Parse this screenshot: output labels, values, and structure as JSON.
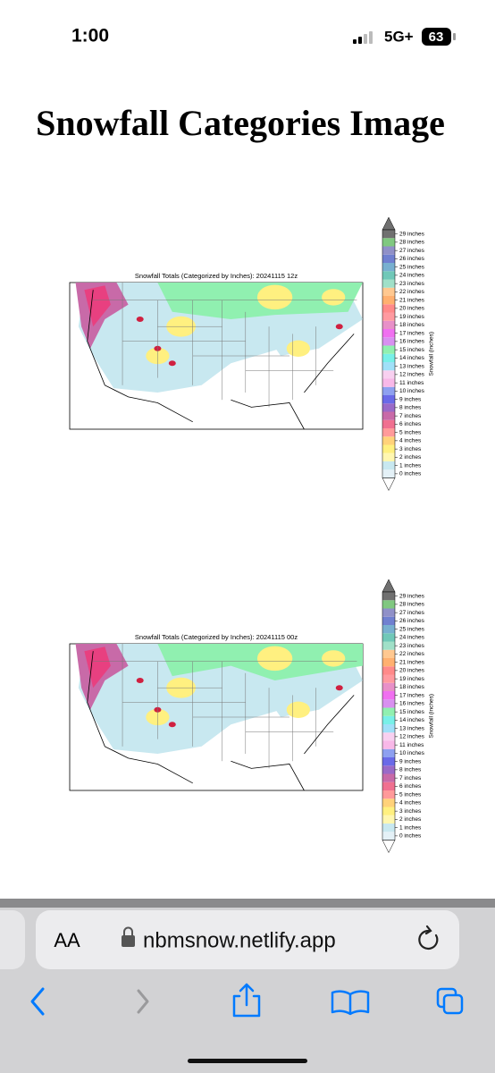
{
  "status_bar": {
    "time": "1:00",
    "network": "5G+",
    "battery": "63"
  },
  "header": {
    "title": "Snowfall Categories Image"
  },
  "colorbar_colors": [
    "#e4f1f7",
    "#c8e8f0",
    "#fff7b0",
    "#fff080",
    "#ffd27a",
    "#ff9a9a",
    "#f07090",
    "#c86aa8",
    "#9a6ac8",
    "#6a6ae8",
    "#8ea0f0",
    "#f8b8e8",
    "#f8d0f0",
    "#a0e0f8",
    "#78f0e8",
    "#90f0b0",
    "#d890f0",
    "#f070f0",
    "#e890c8",
    "#ff9aa0",
    "#ff8a8a",
    "#ffb070",
    "#ffc890",
    "#a0e0c8",
    "#70c8b8",
    "#78b0d0",
    "#7080d0",
    "#9090c8",
    "#80c880",
    "#707070"
  ],
  "figures": [
    {
      "title": "Snowfall Totals (Categorized by Inches): 20241115 12z",
      "colorbar_label": "Snowfall (inches)",
      "colorbar_labels": [
        "0 inches",
        "1 inches",
        "2 inches",
        "3 inches",
        "4 inches",
        "5 inches",
        "6 inches",
        "7 inches",
        "8 inches",
        "9 inches",
        "10 inches",
        "11 inches",
        "12 inches",
        "13 inches",
        "14 inches",
        "15 inches",
        "16 inches",
        "17 inches",
        "18 inches",
        "19 inches",
        "20 inches",
        "21 inches",
        "22 inches",
        "23 inches",
        "24 inches",
        "25 inches",
        "26 inches",
        "27 inches",
        "28 inches",
        "29 inches"
      ]
    },
    {
      "title": "Snowfall Totals (Categorized by Inches): 20241115 00z",
      "colorbar_label": "Snowfall (inches)",
      "colorbar_labels": [
        "0 inches",
        "1 inches",
        "2 inches",
        "3 inches",
        "4 inches",
        "5 inches",
        "6 inches",
        "7 inches",
        "8 inches",
        "9 inches",
        "10 inches",
        "11 inches",
        "12 inches",
        "13 inches",
        "14 inches",
        "15 inches",
        "16 inches",
        "17 inches",
        "18 inches",
        "19 inches",
        "20 inches",
        "21 inches",
        "22 inches",
        "23 inches",
        "24 inches",
        "25 inches",
        "26 inches",
        "27 inches",
        "28 inches",
        "29 inches"
      ]
    }
  ],
  "browser": {
    "text_size_button": "AA",
    "url": "nbmsnow.netlify.app"
  }
}
